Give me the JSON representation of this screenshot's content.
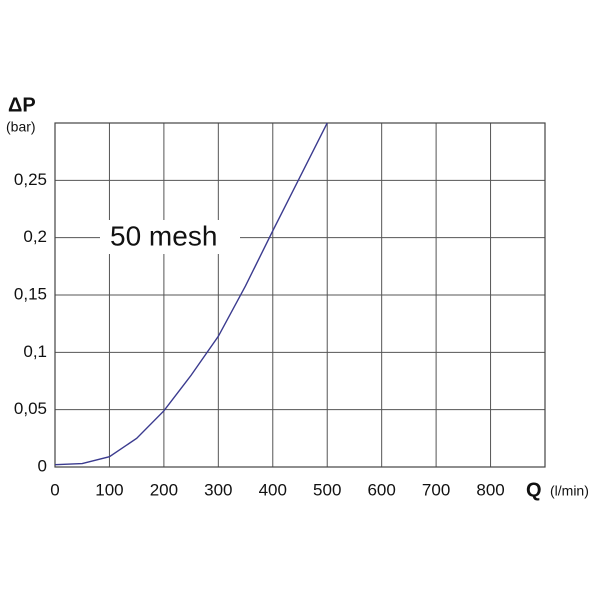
{
  "chart_data": {
    "type": "line",
    "y_label": "ΔP",
    "y_unit": "(bar)",
    "x_label": "Q",
    "x_unit": "(l/min)",
    "annotation": "50 mesh",
    "x": [
      0,
      50,
      100,
      150,
      200,
      250,
      300,
      350,
      400,
      450,
      500
    ],
    "series": [
      {
        "name": "50 mesh",
        "color": "#3b3b8f",
        "values": [
          0.002,
          0.003,
          0.009,
          0.025,
          0.049,
          0.08,
          0.114,
          0.158,
          0.206,
          0.253,
          0.3
        ]
      }
    ],
    "xlim": [
      0,
      900
    ],
    "xticks": [
      0,
      100,
      200,
      300,
      400,
      500,
      600,
      700,
      800
    ],
    "ylim": [
      0,
      0.3
    ],
    "yticks": [
      0,
      {
        "value": 0.05,
        "label": "0,05"
      },
      {
        "value": 0.1,
        "label": "0,1"
      },
      {
        "value": 0.15,
        "label": "0,15"
      },
      {
        "value": 0.2,
        "label": "0,2"
      },
      {
        "value": 0.25,
        "label": "0,25"
      }
    ],
    "grid": true
  }
}
